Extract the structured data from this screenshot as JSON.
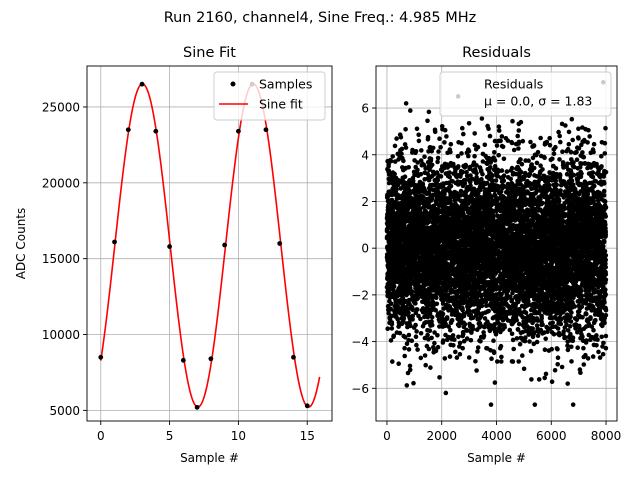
{
  "figure": {
    "suptitle": "Run 2160, channel4, Sine Freq.: 4.985 MHz"
  },
  "chart_data": [
    {
      "type": "scatter",
      "title": "Sine Fit",
      "xlabel": "Sample #",
      "ylabel": "ADC Counts",
      "xlim": [
        -1.0,
        16.8
      ],
      "ylim": [
        4300,
        27700
      ],
      "xticks": [
        0,
        5,
        10,
        15
      ],
      "yticks": [
        5000,
        10000,
        15000,
        20000,
        25000
      ],
      "grid": true,
      "legend": {
        "placement": "top-right",
        "entries": [
          "Samples",
          "Sine fit"
        ]
      },
      "series": [
        {
          "name": "Samples",
          "kind": "points",
          "color": "#000000",
          "x": [
            0,
            1,
            2,
            3,
            4,
            5,
            6,
            7,
            8,
            9,
            10,
            11,
            12,
            13,
            14,
            15
          ],
          "y": [
            8500,
            16100,
            23500,
            26500,
            23400,
            15800,
            8300,
            5200,
            8400,
            15900,
            23400,
            26500,
            23500,
            16000,
            8500,
            5300
          ]
        },
        {
          "name": "Sine fit",
          "kind": "line",
          "color": "#ff0000",
          "model": {
            "amplitude": 10650,
            "offset": 15870,
            "period": 8.05,
            "phase": -0.7935,
            "x_start": 0,
            "x_end": 15.9
          }
        }
      ]
    },
    {
      "type": "scatter",
      "title": "Residuals",
      "xlabel": "Sample #",
      "ylabel": "",
      "xlim": [
        -400,
        8400
      ],
      "ylim": [
        -7.4,
        7.8
      ],
      "xticks": [
        0,
        2000,
        4000,
        6000,
        8000
      ],
      "yticks": [
        -6,
        -4,
        -2,
        0,
        2,
        4,
        6
      ],
      "grid": true,
      "legend": {
        "placement": "top-right",
        "entries": [
          "Residuals",
          "μ = 0.0, σ = 1.83"
        ]
      },
      "series": [
        {
          "name": "Residuals",
          "kind": "points",
          "color": "#000000",
          "n_points": 8000,
          "x_range": [
            0,
            7999
          ],
          "mean": 0.0,
          "sigma": 1.83,
          "outliers": [
            {
              "x": 700,
              "y": 6.2
            },
            {
              "x": 2600,
              "y": 6.5
            },
            {
              "x": 7900,
              "y": 7.1
            },
            {
              "x": 2150,
              "y": -6.2
            },
            {
              "x": 3800,
              "y": -6.7
            },
            {
              "x": 5400,
              "y": -6.7
            },
            {
              "x": 6800,
              "y": -6.7
            },
            {
              "x": 6600,
              "y": -5.8
            }
          ]
        }
      ]
    }
  ]
}
